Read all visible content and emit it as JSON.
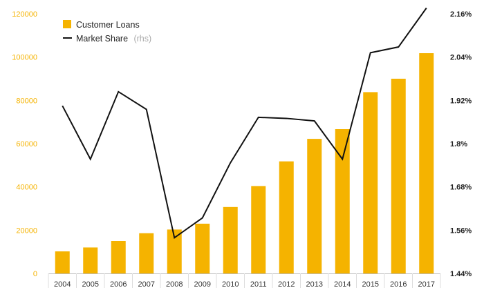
{
  "chart_data": {
    "type": "bar+line",
    "categories": [
      "2004",
      "2005",
      "2006",
      "2007",
      "2008",
      "2009",
      "2010",
      "2011",
      "2012",
      "2013",
      "2014",
      "2015",
      "2016",
      "2017"
    ],
    "series": [
      {
        "name": "Customer Loans",
        "type": "bar",
        "axis": "left",
        "color": "#f5b300",
        "values": [
          10200,
          12000,
          15000,
          18600,
          20300,
          23000,
          30700,
          40400,
          51800,
          62200,
          66700,
          83800,
          90000,
          101800
        ]
      },
      {
        "name": "Market Share",
        "type": "line",
        "axis": "right",
        "color": "#111111",
        "values": [
          1.905,
          1.757,
          1.944,
          1.895,
          1.539,
          1.594,
          1.747,
          1.873,
          1.87,
          1.863,
          1.757,
          2.052,
          2.068,
          2.176
        ]
      }
    ],
    "legend": {
      "loans_label": "Customer Loans",
      "share_label": "Market Share",
      "share_note": "(rhs)",
      "position": "top-left"
    },
    "y_left": {
      "ylim": [
        0,
        120000
      ],
      "ticks": [
        "0",
        "20000",
        "40000",
        "60000",
        "80000",
        "100000",
        "120000"
      ],
      "color": "#f5b300"
    },
    "y_right": {
      "ylim": [
        1.44,
        2.16
      ],
      "ticks": [
        "1.44%",
        "1.56%",
        "1.68%",
        "1.8%",
        "1.92%",
        "2.04%",
        "2.16%"
      ]
    },
    "grid": false
  }
}
